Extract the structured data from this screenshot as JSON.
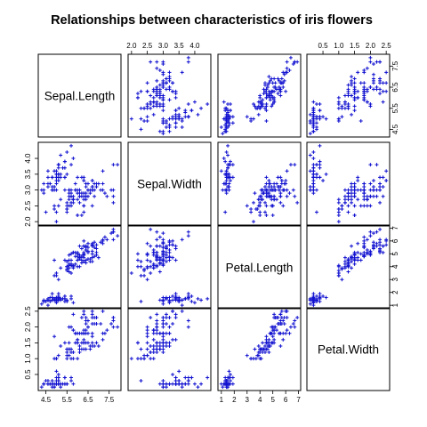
{
  "chart_data": {
    "type": "scatter",
    "plot_kind": "scatterplot-matrix",
    "title": "Relationships between characteristics of iris flowers",
    "point_color": "#1010d0",
    "point_symbol": "+",
    "variables": [
      "Sepal.Length",
      "Sepal.Width",
      "Petal.Length",
      "Petal.Width"
    ],
    "ranges": {
      "Sepal.Length": [
        4.3,
        7.9
      ],
      "Sepal.Width": [
        2.0,
        4.4
      ],
      "Petal.Length": [
        1.0,
        6.9
      ],
      "Petal.Width": [
        0.1,
        2.5
      ]
    },
    "ticks": {
      "Sepal.Length": {
        "values": [
          4.5,
          5.5,
          6.5,
          7.5
        ],
        "labels": [
          "4.5",
          "5.5",
          "6.5",
          "7.5"
        ]
      },
      "Sepal.Width": {
        "values": [
          2.0,
          2.5,
          3.0,
          3.5,
          4.0
        ],
        "labels": [
          "2.0",
          "2.5",
          "3.0",
          "3.5",
          "4.0"
        ]
      },
      "Petal.Length": {
        "values": [
          1,
          2,
          3,
          4,
          5,
          6,
          7
        ],
        "labels": [
          "1",
          "2",
          "3",
          "4",
          "5",
          "6",
          "7"
        ]
      },
      "Petal.Width": {
        "values": [
          0.5,
          1.0,
          1.5,
          2.0,
          2.5
        ],
        "labels": [
          "0.5",
          "1.0",
          "1.5",
          "2.0",
          "2.5"
        ]
      }
    },
    "axis_placement": {
      "Sepal.Length": [
        "bottom",
        "right"
      ],
      "Sepal.Width": [
        "top",
        "left"
      ],
      "Petal.Length": [
        "bottom",
        "right"
      ],
      "Petal.Width": [
        "top",
        "left"
      ]
    },
    "observations": [
      [
        5.1,
        3.5,
        1.4,
        0.2
      ],
      [
        4.9,
        3.0,
        1.4,
        0.2
      ],
      [
        4.7,
        3.2,
        1.3,
        0.2
      ],
      [
        4.6,
        3.1,
        1.5,
        0.2
      ],
      [
        5.0,
        3.6,
        1.4,
        0.2
      ],
      [
        5.4,
        3.9,
        1.7,
        0.4
      ],
      [
        4.6,
        3.4,
        1.4,
        0.3
      ],
      [
        5.0,
        3.4,
        1.5,
        0.2
      ],
      [
        4.4,
        2.9,
        1.4,
        0.2
      ],
      [
        4.9,
        3.1,
        1.5,
        0.1
      ],
      [
        5.4,
        3.7,
        1.5,
        0.2
      ],
      [
        4.8,
        3.4,
        1.6,
        0.2
      ],
      [
        4.8,
        3.0,
        1.4,
        0.1
      ],
      [
        4.3,
        3.0,
        1.1,
        0.1
      ],
      [
        5.8,
        4.0,
        1.2,
        0.2
      ],
      [
        5.7,
        4.4,
        1.5,
        0.4
      ],
      [
        5.4,
        3.9,
        1.3,
        0.4
      ],
      [
        5.1,
        3.5,
        1.4,
        0.3
      ],
      [
        5.7,
        3.8,
        1.7,
        0.3
      ],
      [
        5.1,
        3.8,
        1.5,
        0.3
      ],
      [
        5.4,
        3.4,
        1.7,
        0.2
      ],
      [
        5.1,
        3.7,
        1.5,
        0.4
      ],
      [
        4.6,
        3.6,
        1.0,
        0.2
      ],
      [
        5.1,
        3.3,
        1.7,
        0.5
      ],
      [
        4.8,
        3.4,
        1.9,
        0.2
      ],
      [
        5.0,
        3.0,
        1.6,
        0.2
      ],
      [
        5.0,
        3.4,
        1.6,
        0.4
      ],
      [
        5.2,
        3.5,
        1.5,
        0.2
      ],
      [
        5.2,
        3.4,
        1.4,
        0.2
      ],
      [
        4.7,
        3.2,
        1.6,
        0.2
      ],
      [
        4.8,
        3.1,
        1.6,
        0.2
      ],
      [
        5.4,
        3.4,
        1.5,
        0.4
      ],
      [
        5.2,
        4.1,
        1.5,
        0.1
      ],
      [
        5.5,
        4.2,
        1.4,
        0.2
      ],
      [
        4.9,
        3.1,
        1.5,
        0.2
      ],
      [
        5.0,
        3.2,
        1.2,
        0.2
      ],
      [
        5.5,
        3.5,
        1.3,
        0.2
      ],
      [
        4.9,
        3.6,
        1.4,
        0.1
      ],
      [
        4.4,
        3.0,
        1.3,
        0.2
      ],
      [
        5.1,
        3.4,
        1.5,
        0.2
      ],
      [
        5.0,
        3.5,
        1.3,
        0.3
      ],
      [
        4.5,
        2.3,
        1.3,
        0.3
      ],
      [
        4.4,
        3.2,
        1.3,
        0.2
      ],
      [
        5.0,
        3.5,
        1.6,
        0.6
      ],
      [
        5.1,
        3.8,
        1.9,
        0.4
      ],
      [
        4.8,
        3.0,
        1.4,
        0.3
      ],
      [
        5.1,
        3.8,
        1.6,
        0.2
      ],
      [
        4.6,
        3.2,
        1.4,
        0.2
      ],
      [
        5.3,
        3.7,
        1.5,
        0.2
      ],
      [
        5.0,
        3.3,
        1.4,
        0.2
      ],
      [
        7.0,
        3.2,
        4.7,
        1.4
      ],
      [
        6.4,
        3.2,
        4.5,
        1.5
      ],
      [
        6.9,
        3.1,
        4.9,
        1.5
      ],
      [
        5.5,
        2.3,
        4.0,
        1.3
      ],
      [
        6.5,
        2.8,
        4.6,
        1.5
      ],
      [
        5.7,
        2.8,
        4.5,
        1.3
      ],
      [
        6.3,
        3.3,
        4.7,
        1.6
      ],
      [
        4.9,
        2.4,
        3.3,
        1.0
      ],
      [
        6.6,
        2.9,
        4.6,
        1.3
      ],
      [
        5.2,
        2.7,
        3.9,
        1.4
      ],
      [
        5.0,
        2.0,
        3.5,
        1.0
      ],
      [
        5.9,
        3.0,
        4.2,
        1.5
      ],
      [
        6.0,
        2.2,
        4.0,
        1.0
      ],
      [
        6.1,
        2.9,
        4.7,
        1.4
      ],
      [
        5.6,
        2.9,
        3.6,
        1.3
      ],
      [
        6.7,
        3.1,
        4.4,
        1.4
      ],
      [
        5.6,
        3.0,
        4.5,
        1.5
      ],
      [
        5.8,
        2.7,
        4.1,
        1.0
      ],
      [
        6.2,
        2.2,
        4.5,
        1.5
      ],
      [
        5.6,
        2.5,
        3.9,
        1.1
      ],
      [
        5.9,
        3.2,
        4.8,
        1.8
      ],
      [
        6.1,
        2.8,
        4.0,
        1.3
      ],
      [
        6.3,
        2.5,
        4.9,
        1.5
      ],
      [
        6.1,
        2.8,
        4.7,
        1.2
      ],
      [
        6.4,
        2.9,
        4.3,
        1.3
      ],
      [
        6.6,
        3.0,
        4.4,
        1.4
      ],
      [
        6.8,
        2.8,
        4.8,
        1.4
      ],
      [
        6.7,
        3.0,
        5.0,
        1.7
      ],
      [
        6.0,
        2.9,
        4.5,
        1.5
      ],
      [
        5.7,
        2.6,
        3.5,
        1.0
      ],
      [
        5.5,
        2.4,
        3.8,
        1.1
      ],
      [
        5.5,
        2.4,
        3.7,
        1.0
      ],
      [
        5.8,
        2.7,
        3.9,
        1.2
      ],
      [
        6.0,
        2.7,
        5.1,
        1.6
      ],
      [
        5.4,
        3.0,
        4.5,
        1.5
      ],
      [
        6.0,
        3.4,
        4.5,
        1.6
      ],
      [
        6.7,
        3.1,
        4.7,
        1.5
      ],
      [
        6.3,
        2.3,
        4.4,
        1.3
      ],
      [
        5.6,
        3.0,
        4.1,
        1.3
      ],
      [
        5.5,
        2.5,
        4.0,
        1.3
      ],
      [
        5.5,
        2.6,
        4.4,
        1.2
      ],
      [
        6.1,
        3.0,
        4.6,
        1.4
      ],
      [
        5.8,
        2.6,
        4.0,
        1.2
      ],
      [
        5.0,
        2.3,
        3.3,
        1.0
      ],
      [
        5.6,
        2.7,
        4.2,
        1.3
      ],
      [
        5.7,
        3.0,
        4.2,
        1.2
      ],
      [
        5.7,
        2.9,
        4.2,
        1.3
      ],
      [
        6.2,
        2.9,
        4.3,
        1.3
      ],
      [
        5.1,
        2.5,
        3.0,
        1.1
      ],
      [
        5.7,
        2.8,
        4.1,
        1.3
      ],
      [
        6.3,
        3.3,
        6.0,
        2.5
      ],
      [
        5.8,
        2.7,
        5.1,
        1.9
      ],
      [
        7.1,
        3.0,
        5.9,
        2.1
      ],
      [
        6.3,
        2.9,
        5.6,
        1.8
      ],
      [
        6.5,
        3.0,
        5.8,
        2.2
      ],
      [
        7.6,
        3.0,
        6.6,
        2.1
      ],
      [
        4.9,
        2.5,
        4.5,
        1.7
      ],
      [
        7.3,
        2.9,
        6.3,
        1.8
      ],
      [
        6.7,
        2.5,
        5.8,
        1.8
      ],
      [
        7.2,
        3.6,
        6.1,
        2.5
      ],
      [
        6.5,
        3.2,
        5.1,
        2.0
      ],
      [
        6.4,
        2.7,
        5.3,
        1.9
      ],
      [
        6.8,
        3.0,
        5.5,
        2.1
      ],
      [
        5.7,
        2.5,
        5.0,
        2.0
      ],
      [
        5.8,
        2.8,
        5.1,
        2.4
      ],
      [
        6.4,
        3.2,
        5.3,
        2.3
      ],
      [
        6.5,
        3.0,
        5.5,
        1.8
      ],
      [
        7.7,
        3.8,
        6.7,
        2.2
      ],
      [
        7.7,
        2.6,
        6.9,
        2.3
      ],
      [
        6.0,
        2.2,
        5.0,
        1.5
      ],
      [
        6.9,
        3.2,
        5.7,
        2.3
      ],
      [
        5.6,
        2.8,
        4.9,
        2.0
      ],
      [
        7.7,
        2.8,
        6.7,
        2.0
      ],
      [
        6.3,
        2.7,
        4.9,
        1.8
      ],
      [
        6.7,
        3.3,
        5.7,
        2.1
      ],
      [
        7.2,
        3.2,
        6.0,
        1.8
      ],
      [
        6.2,
        2.8,
        4.8,
        1.8
      ],
      [
        6.1,
        3.0,
        4.9,
        1.8
      ],
      [
        6.4,
        2.8,
        5.6,
        2.1
      ],
      [
        7.2,
        3.0,
        5.8,
        1.6
      ],
      [
        7.4,
        2.8,
        6.1,
        1.9
      ],
      [
        7.9,
        3.8,
        6.4,
        2.0
      ],
      [
        6.4,
        2.8,
        5.6,
        2.2
      ],
      [
        6.3,
        2.8,
        5.1,
        1.5
      ],
      [
        6.1,
        2.6,
        5.6,
        1.4
      ],
      [
        7.7,
        3.0,
        6.1,
        2.3
      ],
      [
        6.3,
        3.4,
        5.6,
        2.4
      ],
      [
        6.4,
        3.1,
        5.5,
        1.8
      ],
      [
        6.0,
        3.0,
        4.8,
        1.8
      ],
      [
        6.9,
        3.1,
        5.4,
        2.1
      ],
      [
        6.7,
        3.1,
        5.6,
        2.4
      ],
      [
        6.9,
        3.1,
        5.1,
        2.3
      ],
      [
        5.8,
        2.7,
        5.1,
        1.9
      ],
      [
        6.8,
        3.2,
        5.9,
        2.3
      ],
      [
        6.7,
        3.3,
        5.7,
        2.5
      ],
      [
        6.7,
        3.0,
        5.2,
        2.3
      ],
      [
        6.3,
        2.5,
        5.0,
        1.9
      ],
      [
        6.5,
        3.0,
        5.2,
        2.0
      ],
      [
        6.2,
        3.4,
        5.4,
        2.3
      ],
      [
        5.9,
        3.0,
        5.1,
        1.8
      ]
    ]
  }
}
